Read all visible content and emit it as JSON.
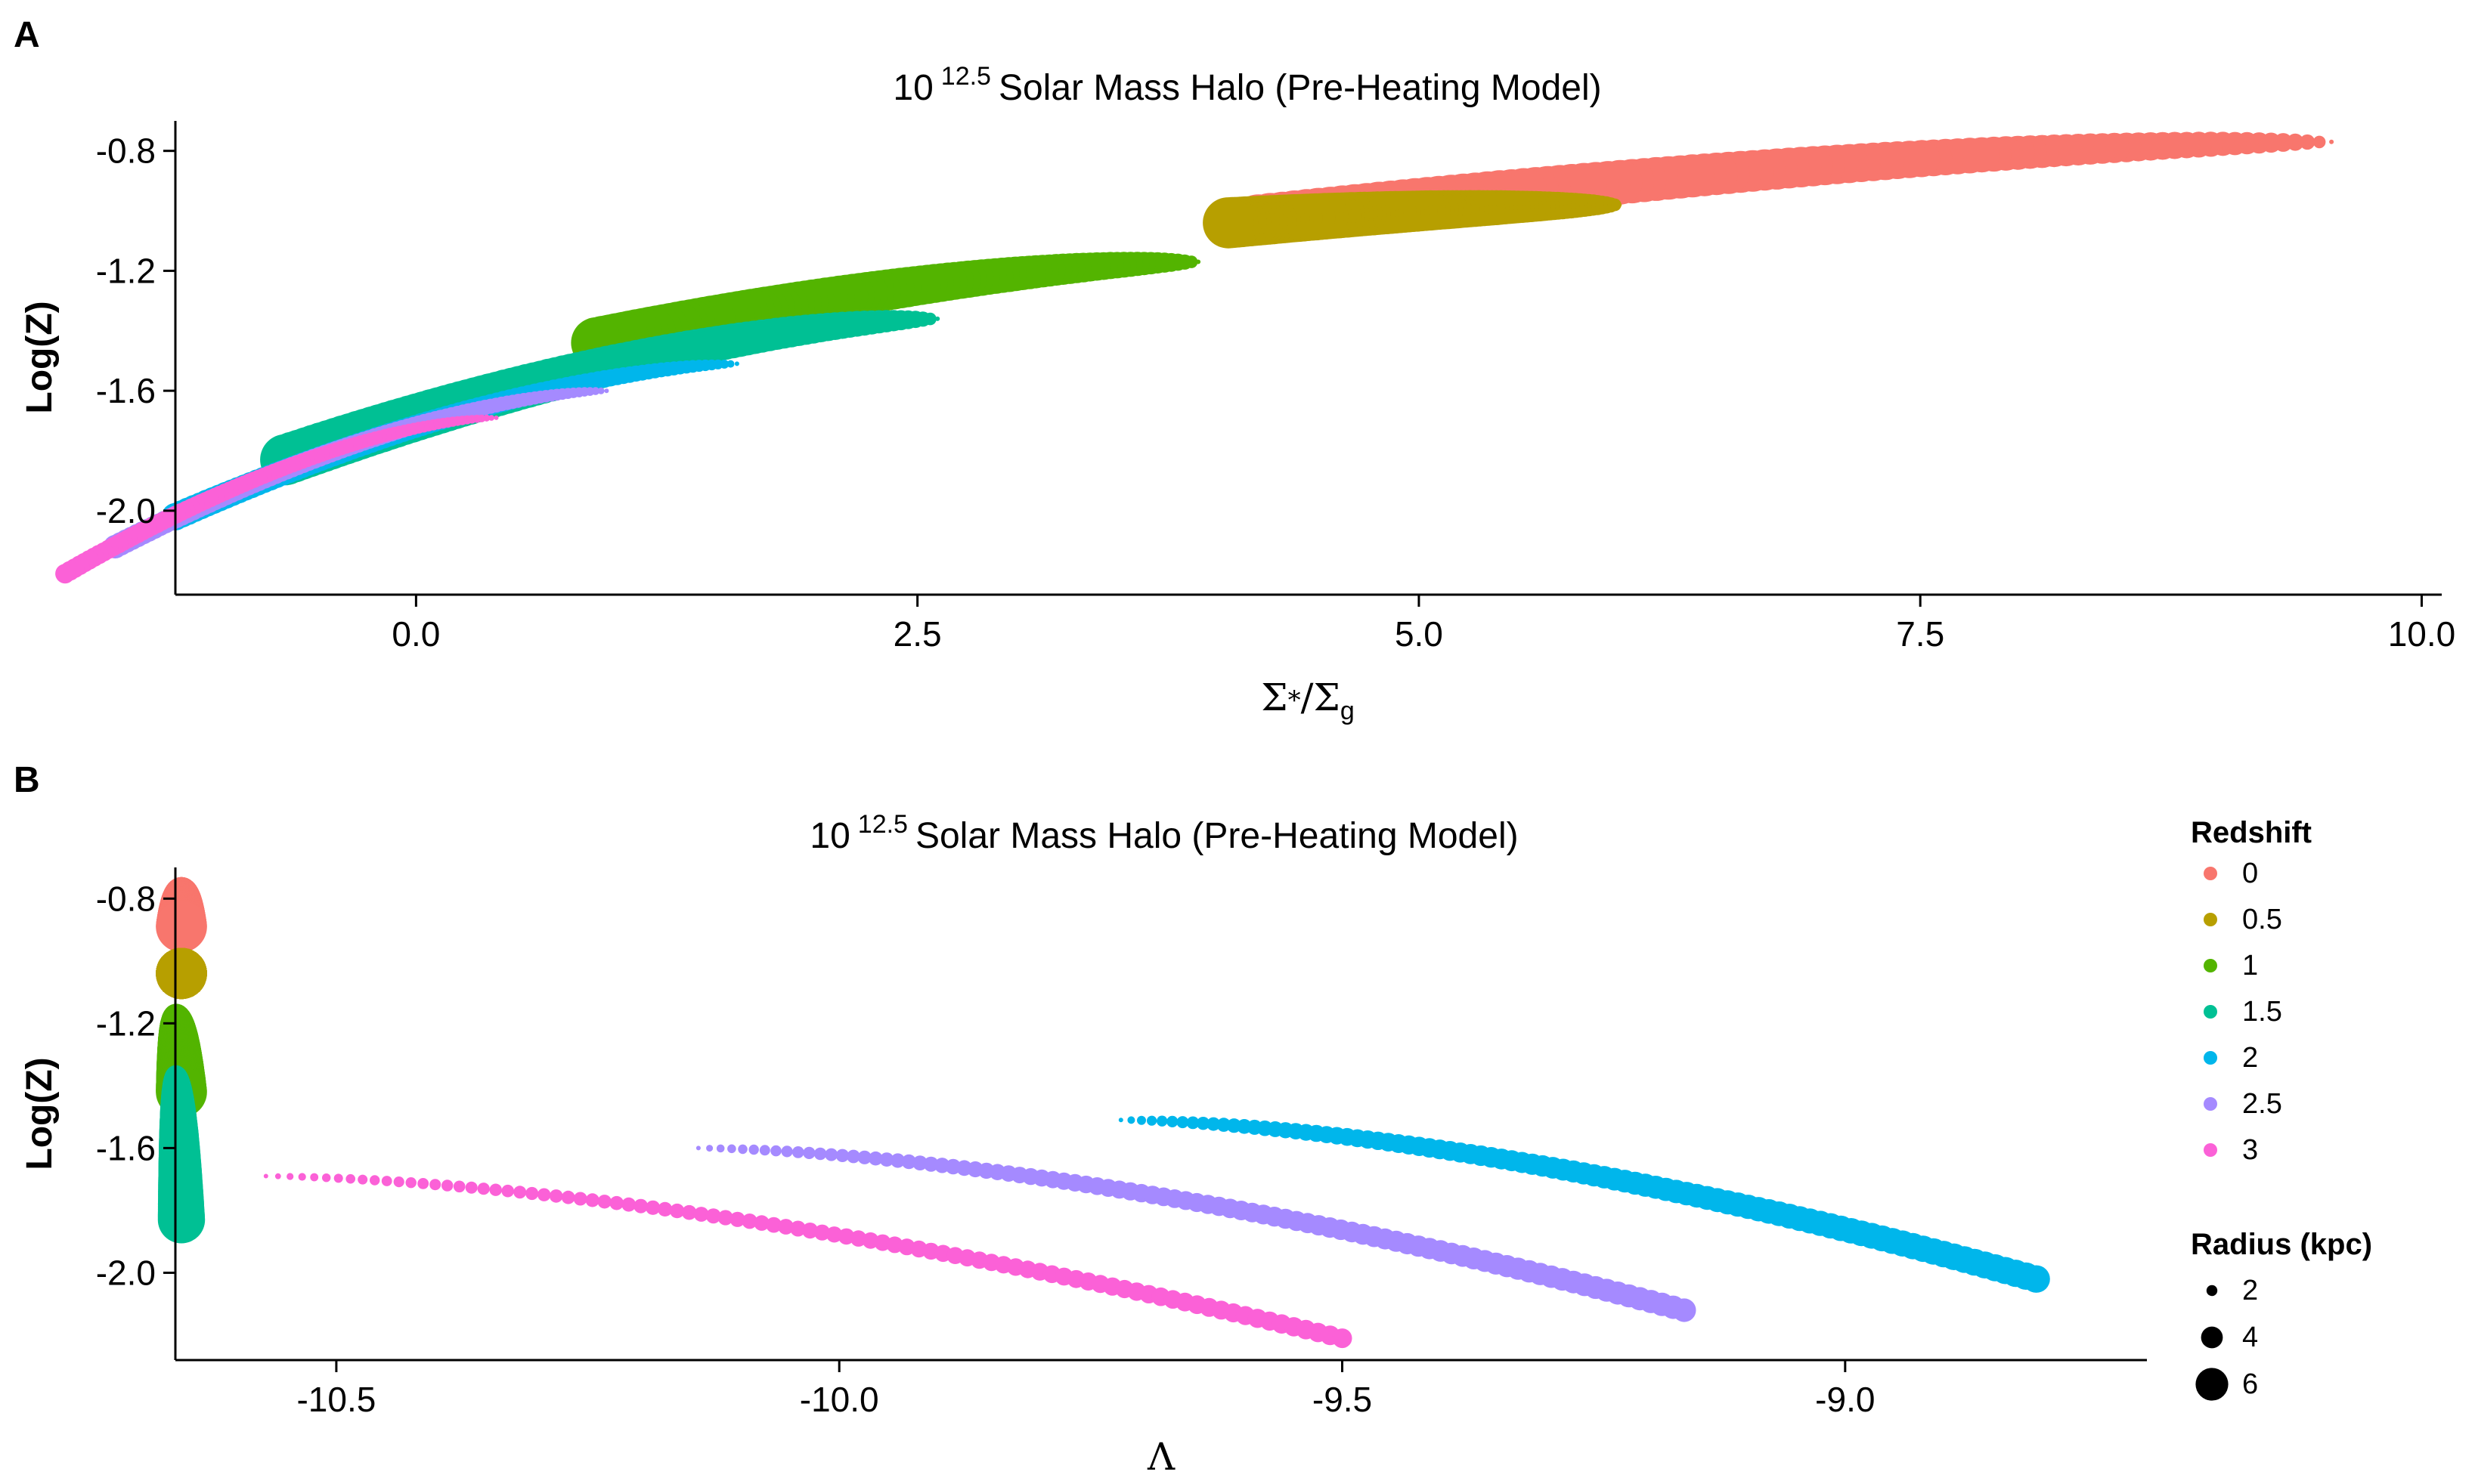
{
  "chart_data": [
    {
      "type": "scatter",
      "panel": "A",
      "title_base": "10",
      "title_exponent": "12.5",
      "title_rest": "Solar Mass Halo (Pre-Heating Model)",
      "xlabel_num_sym": "Σ",
      "xlabel_num_sub": "*",
      "xlabel_slash": "/",
      "xlabel_den_sym": "Σ",
      "xlabel_den_sub": "g",
      "ylabel": "Log(Z)",
      "xlim": [
        -1.2,
        10.1
      ],
      "ylim": [
        -2.28,
        -0.7
      ],
      "x_ticks": [
        0.0,
        2.5,
        5.0,
        7.5,
        10.0
      ],
      "x_tick_labels": [
        "0.0",
        "2.5",
        "5.0",
        "7.5",
        "10.0"
      ],
      "y_ticks": [
        -0.8,
        -1.2,
        -1.6,
        -2.0
      ],
      "y_tick_labels": [
        "-0.8",
        "-1.2",
        "-1.6",
        "-2.0"
      ],
      "grid": false,
      "series": [
        {
          "name": "0",
          "color": "#F8766D",
          "x_start": 4.2,
          "x_end": 9.55,
          "y_start": -1.03,
          "y_end": -0.77,
          "r_start": 6.5,
          "r_end": 0.3
        },
        {
          "name": "0.5",
          "color": "#B79F00",
          "x_start": 4.05,
          "x_end": 6.0,
          "y_start": -1.04,
          "y_end": -0.98,
          "r_start": 6.5,
          "r_end": 0.3
        },
        {
          "name": "1",
          "color": "#53B400",
          "x_start": 0.9,
          "x_end": 3.9,
          "y_start": -1.44,
          "y_end": -1.17,
          "r_start": 6.5,
          "r_end": 0.3
        },
        {
          "name": "1.5",
          "color": "#00C094",
          "x_start": -0.65,
          "x_end": 2.6,
          "y_start": -1.83,
          "y_end": -1.36,
          "r_start": 6.5,
          "r_end": 0.3
        },
        {
          "name": "2",
          "color": "#00B6EB",
          "x_start": -1.2,
          "x_end": 1.6,
          "y_start": -2.02,
          "y_end": -1.51,
          "r_start": 3.5,
          "r_end": 0.3
        },
        {
          "name": "2.5",
          "color": "#A58AFF",
          "x_start": -1.5,
          "x_end": 0.95,
          "y_start": -2.12,
          "y_end": -1.6,
          "r_start": 3.0,
          "r_end": 0.3
        },
        {
          "name": "3",
          "color": "#FB61D7",
          "x_start": -1.75,
          "x_end": 0.4,
          "y_start": -2.21,
          "y_end": -1.69,
          "r_start": 2.5,
          "r_end": 0.3
        }
      ]
    },
    {
      "type": "scatter",
      "panel": "B",
      "title_base": "10",
      "title_exponent": "12.5",
      "title_rest": "Solar Mass Halo (Pre-Heating Model)",
      "xlabel": "Λ",
      "ylabel": "Log(Z)",
      "xlim": [
        -10.66,
        -8.7
      ],
      "ylim": [
        -2.28,
        -0.7
      ],
      "x_ticks": [
        -10.5,
        -10.0,
        -9.5,
        -9.0
      ],
      "x_tick_labels": [
        "-10.5",
        "-10.0",
        "-9.5",
        "-9.0"
      ],
      "y_ticks": [
        -0.8,
        -1.2,
        -1.6,
        -2.0
      ],
      "y_tick_labels": [
        "-0.8",
        "-1.2",
        "-1.6",
        "-2.0"
      ],
      "grid": false,
      "series": [
        {
          "name": "0",
          "color": "#F8766D",
          "x_start": -10.654,
          "x_end": -10.654,
          "y_start": -0.89,
          "y_end": -0.77,
          "r_start": 6.5,
          "r_end": 0.3
        },
        {
          "name": "0.5",
          "color": "#B79F00",
          "x_start": -10.654,
          "x_end": -10.654,
          "y_start": -1.04,
          "y_end": -1.04,
          "r_start": 6.5,
          "r_end": 6.5
        },
        {
          "name": "1",
          "color": "#53B400",
          "x_start": -10.654,
          "x_end": -10.66,
          "y_start": -1.42,
          "y_end": -1.17,
          "r_start": 6.5,
          "r_end": 0.3
        },
        {
          "name": "1.5",
          "color": "#00C094",
          "x_start": -10.654,
          "x_end": -10.66,
          "y_start": -1.83,
          "y_end": -1.36,
          "r_start": 6.0,
          "r_end": 0.3
        },
        {
          "name": "2",
          "color": "#00B6EB",
          "x_start": -8.81,
          "x_end": -9.72,
          "y_start": -2.02,
          "y_end": -1.51,
          "r_start": 3.5,
          "r_end": 0.3
        },
        {
          "name": "2.5",
          "color": "#A58AFF",
          "x_start": -9.16,
          "x_end": -10.14,
          "y_start": -2.12,
          "y_end": -1.6,
          "r_start": 3.0,
          "r_end": 0.3
        },
        {
          "name": "3",
          "color": "#FB61D7",
          "x_start": -9.5,
          "x_end": -10.57,
          "y_start": -2.21,
          "y_end": -1.69,
          "r_start": 2.5,
          "r_end": 0.3
        }
      ]
    }
  ],
  "legend": {
    "color_title": "Redshift",
    "color_items": [
      {
        "label": "0",
        "color": "#F8766D"
      },
      {
        "label": "0.5",
        "color": "#B79F00"
      },
      {
        "label": "1",
        "color": "#53B400"
      },
      {
        "label": "1.5",
        "color": "#00C094"
      },
      {
        "label": "2",
        "color": "#00B6EB"
      },
      {
        "label": "2.5",
        "color": "#A58AFF"
      },
      {
        "label": "3",
        "color": "#FB61D7"
      }
    ],
    "size_title": "Radius (kpc)",
    "size_items": [
      {
        "label": "2",
        "radius_kpc": 2
      },
      {
        "label": "4",
        "radius_kpc": 4
      },
      {
        "label": "6",
        "radius_kpc": 6
      }
    ]
  },
  "panel_labels": [
    "A",
    "B"
  ]
}
